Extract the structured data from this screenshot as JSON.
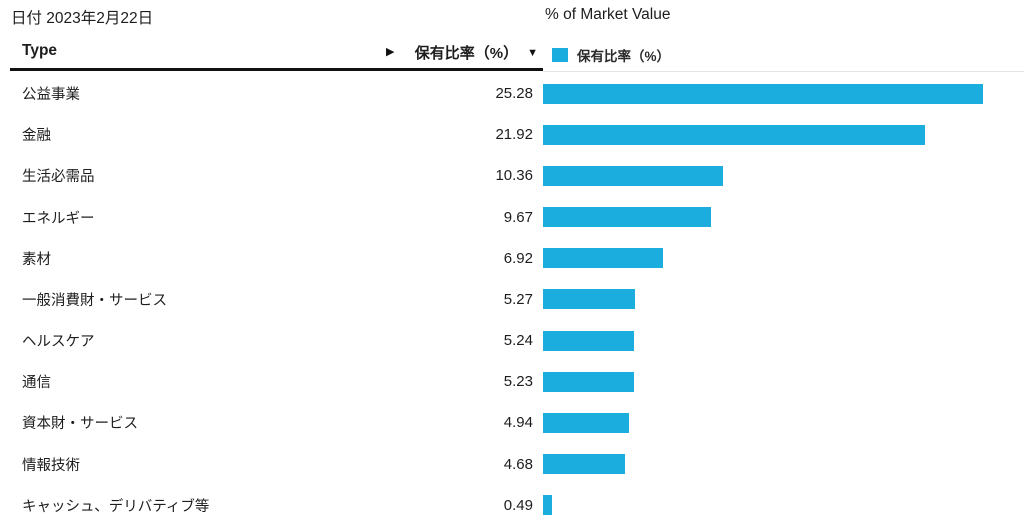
{
  "header": {
    "date_label": "日付 2023年2月22日",
    "chart_title": "% of Market Value"
  },
  "table": {
    "type_header": "Type",
    "expand_icon": "▶",
    "sort_icon": "▼",
    "value_header": "保有比率（%）"
  },
  "legend": {
    "label": "保有比率（%）"
  },
  "colors": {
    "bar": "#1badde",
    "text": "#1d1d1d",
    "table_rule": "#111111",
    "chart_rule": "#e3e3e3"
  },
  "chart_data": {
    "type": "bar",
    "orientation": "horizontal",
    "title": "% of Market Value",
    "series_name": "保有比率（%）",
    "legend_position": "top",
    "grid": false,
    "xlim": [
      0,
      27.6
    ],
    "categories": [
      "公益事業",
      "金融",
      "生活必需品",
      "エネルギー",
      "素材",
      "一般消費財・サービス",
      "ヘルスケア",
      "通信",
      "資本財・サービス",
      "情報技術",
      "キャッシュ、デリバティブ等"
    ],
    "values": [
      25.28,
      21.92,
      10.36,
      9.67,
      6.92,
      5.27,
      5.24,
      5.23,
      4.94,
      4.68,
      0.49
    ]
  }
}
